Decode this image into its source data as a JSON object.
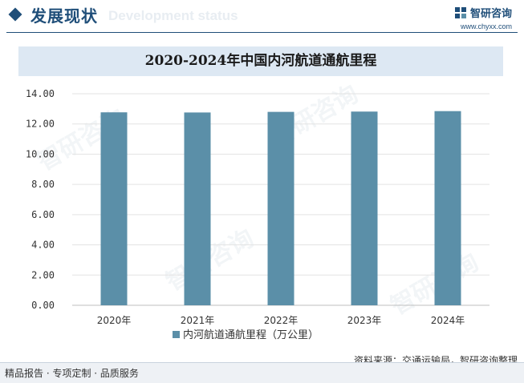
{
  "header": {
    "section_title": "发展现状",
    "section_title_bg": "Development status",
    "brand_name": "智研咨询",
    "brand_url": "www.chyxx.com"
  },
  "watermark": "智研咨询",
  "footer": {
    "left_text": "精品报告 · 专项定制 · 品质服务",
    "source": "资料来源：交通运输局，智研咨询整理"
  },
  "chart_data": {
    "type": "bar",
    "title": "2020-2024年中国内河航道通航里程",
    "categories": [
      "2020年",
      "2021年",
      "2022年",
      "2023年",
      "2024年"
    ],
    "series": [
      {
        "name": "内河航道通航里程（万公里）",
        "values": [
          12.77,
          12.76,
          12.8,
          12.82,
          12.85
        ],
        "color": "#5b8fa8"
      }
    ],
    "ylim": [
      0,
      14
    ],
    "yticks": [
      "0.00",
      "2.00",
      "4.00",
      "6.00",
      "8.00",
      "10.00",
      "12.00",
      "14.00"
    ],
    "grid": true,
    "legend_position": "bottom"
  }
}
